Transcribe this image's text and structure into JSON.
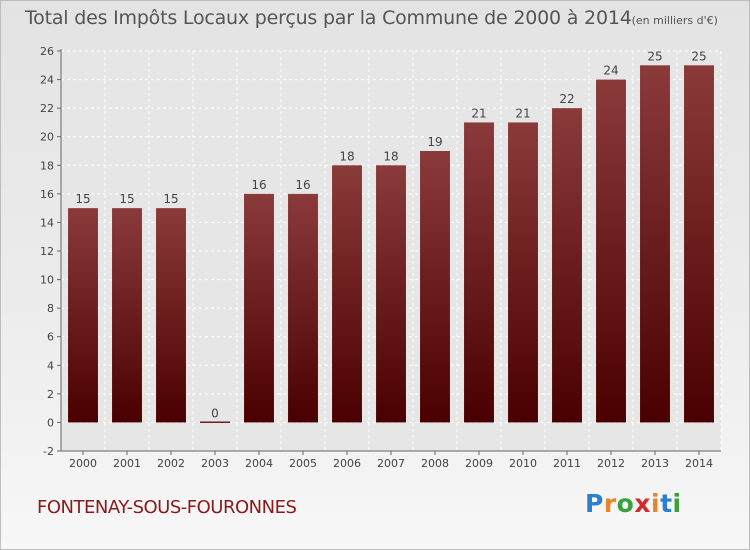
{
  "title": "Total des Impôts Locaux perçus par la Commune de 2000 à 2014",
  "title_unit": "(en milliers d'€)",
  "commune": "FONTENAY-SOUS-FOURONNES",
  "brand": {
    "letters": [
      "P",
      "r",
      "o",
      "x",
      "i",
      "t",
      "i"
    ],
    "colors": [
      "#2a7fd0",
      "#e6862a",
      "#3aa03a",
      "#d42a2a",
      "#e6862a",
      "#2a7fd0",
      "#3aa03a"
    ]
  },
  "colors": {
    "bar_top": "#8b3a3a",
    "bar_bottom": "#4a0000",
    "axis": "#666666",
    "grid": "#ffffff"
  },
  "chart_data": {
    "type": "bar",
    "title": "Total des Impôts Locaux perçus par la Commune de 2000 à 2014",
    "ylabel": "en milliers d'€",
    "xlabel": "",
    "categories": [
      "2000",
      "2001",
      "2002",
      "2003",
      "2004",
      "2005",
      "2006",
      "2007",
      "2008",
      "2009",
      "2010",
      "2011",
      "2012",
      "2013",
      "2014"
    ],
    "values": [
      15,
      15,
      15,
      0,
      16,
      16,
      18,
      18,
      19,
      21,
      21,
      22,
      24,
      25,
      25
    ],
    "labels": [
      "15",
      "15",
      "15",
      "0",
      "16",
      "16",
      "18",
      "18",
      "19",
      "21",
      "21",
      "22",
      "24",
      "25",
      "25"
    ],
    "ylim": [
      -2,
      26
    ],
    "yticks": [
      -2,
      0,
      2,
      4,
      6,
      8,
      10,
      12,
      14,
      16,
      18,
      20,
      22,
      24,
      26
    ],
    "grid": true
  }
}
